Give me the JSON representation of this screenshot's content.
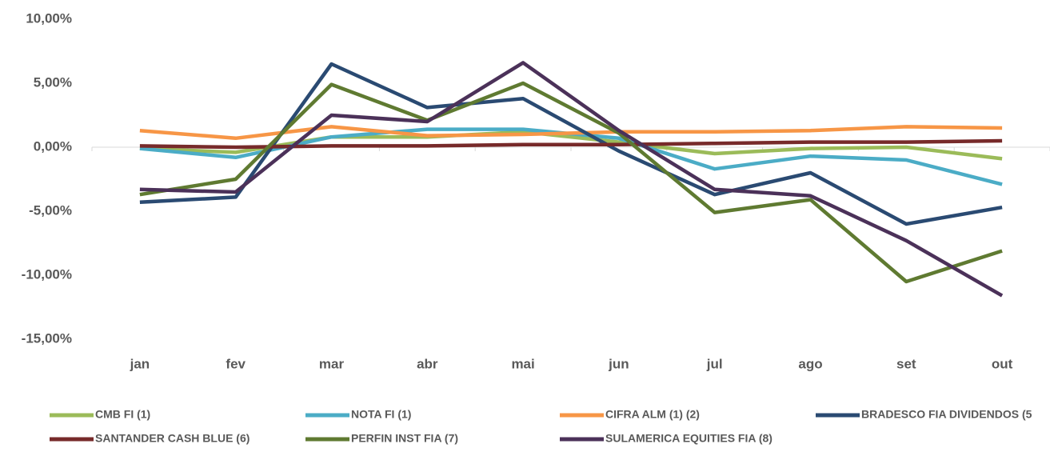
{
  "chart_data": {
    "type": "line",
    "categories": [
      "jan",
      "fev",
      "mar",
      "abr",
      "mai",
      "jun",
      "jul",
      "ago",
      "set",
      "out"
    ],
    "ylim": [
      -15,
      10
    ],
    "yticks": [
      {
        "value": 10,
        "label": "10,00%"
      },
      {
        "value": 5,
        "label": "5,00%"
      },
      {
        "value": 0,
        "label": "0,00%"
      },
      {
        "value": -5,
        "label": "-5,00%"
      },
      {
        "value": -10,
        "label": "-10,00%"
      },
      {
        "value": -15,
        "label": "-15,00%"
      }
    ],
    "grid": false,
    "legend": "bottom",
    "series": [
      {
        "name": "CMB FI (1)",
        "color": "#9bbb59",
        "values": [
          -0.1,
          -0.4,
          0.8,
          0.8,
          1.2,
          0.4,
          -0.5,
          -0.1,
          0.0,
          -0.9
        ]
      },
      {
        "name": "NOTA FI (1)",
        "color": "#4bacc6",
        "values": [
          -0.1,
          -0.8,
          0.8,
          1.4,
          1.4,
          0.7,
          -1.7,
          -0.7,
          -1.0,
          -2.9
        ]
      },
      {
        "name": "CIFRA ALM (1) (2)",
        "color": "#f79646",
        "values": [
          1.3,
          0.7,
          1.6,
          0.9,
          1.0,
          1.2,
          1.2,
          1.3,
          1.6,
          1.5
        ]
      },
      {
        "name": "BRADESCO FIA DIVIDENDOS (5",
        "color": "#2a4a72",
        "values": [
          -4.3,
          -3.9,
          6.5,
          3.1,
          3.8,
          -0.3,
          -3.7,
          -2.0,
          -6.0,
          -4.7
        ]
      },
      {
        "name": "SANTANDER CASH BLUE (6)",
        "color": "#772a2a",
        "values": [
          0.1,
          0.0,
          0.1,
          0.1,
          0.2,
          0.2,
          0.3,
          0.4,
          0.4,
          0.5
        ]
      },
      {
        "name": "PERFIN INST FIA (7)",
        "color": "#5f7a31",
        "values": [
          -3.7,
          -2.5,
          4.9,
          2.1,
          5.0,
          1.1,
          -5.1,
          -4.1,
          -10.5,
          -8.1
        ]
      },
      {
        "name": "SULAMERICA EQUITIES FIA (8)",
        "color": "#4b3159",
        "values": [
          -3.3,
          -3.5,
          2.5,
          2.0,
          6.6,
          1.3,
          -3.3,
          -3.8,
          -7.3,
          -11.6
        ]
      }
    ]
  }
}
